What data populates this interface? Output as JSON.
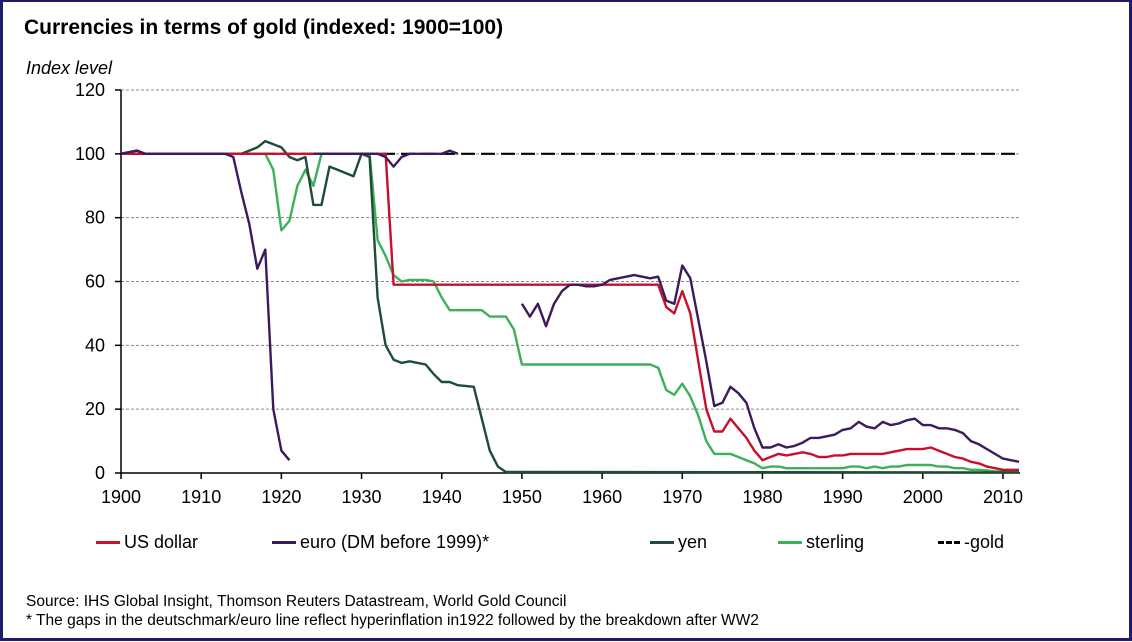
{
  "chart_data": {
    "type": "line",
    "title": "Currencies in terms of gold (indexed: 1900=100)",
    "ylabel": "Index level",
    "xlabel": "",
    "xlim": [
      1900,
      2012
    ],
    "ylim": [
      0,
      120
    ],
    "xticks": [
      1900,
      1910,
      1920,
      1930,
      1940,
      1950,
      1960,
      1970,
      1980,
      1990,
      2000,
      2010
    ],
    "yticks": [
      0,
      20,
      40,
      60,
      80,
      100,
      120
    ],
    "grid": "horizontal dashed",
    "legend_position": "bottom",
    "series": [
      {
        "name": "US dollar",
        "color": "#c8102e",
        "dashed": false,
        "points": [
          [
            1900,
            100
          ],
          [
            1933,
            100
          ],
          [
            1934,
            59
          ],
          [
            1967,
            59
          ],
          [
            1968,
            52
          ],
          [
            1969,
            50
          ],
          [
            1970,
            57
          ],
          [
            1971,
            50
          ],
          [
            1972,
            35
          ],
          [
            1973,
            20
          ],
          [
            1974,
            13
          ],
          [
            1975,
            13
          ],
          [
            1976,
            17
          ],
          [
            1977,
            14
          ],
          [
            1978,
            11
          ],
          [
            1979,
            7
          ],
          [
            1980,
            4
          ],
          [
            1981,
            5
          ],
          [
            1982,
            6
          ],
          [
            1983,
            5.5
          ],
          [
            1984,
            6
          ],
          [
            1985,
            6.5
          ],
          [
            1986,
            6
          ],
          [
            1987,
            5
          ],
          [
            1988,
            5
          ],
          [
            1989,
            5.5
          ],
          [
            1990,
            5.5
          ],
          [
            1991,
            6
          ],
          [
            1995,
            6
          ],
          [
            1996,
            6.5
          ],
          [
            1997,
            7
          ],
          [
            1998,
            7.5
          ],
          [
            2000,
            7.5
          ],
          [
            2001,
            8
          ],
          [
            2002,
            7
          ],
          [
            2003,
            6
          ],
          [
            2004,
            5
          ],
          [
            2005,
            4.5
          ],
          [
            2006,
            3.5
          ],
          [
            2007,
            3
          ],
          [
            2008,
            2
          ],
          [
            2009,
            1.5
          ],
          [
            2010,
            1
          ],
          [
            2012,
            1
          ]
        ]
      },
      {
        "name": "euro (DM before 1999)*",
        "color": "#3b1a5e",
        "dashed": false,
        "points": [
          [
            1900,
            100
          ],
          [
            1902,
            101
          ],
          [
            1903,
            100
          ],
          [
            1913,
            100
          ],
          [
            1914,
            99
          ],
          [
            1915,
            88
          ],
          [
            1916,
            78
          ],
          [
            1917,
            64
          ],
          [
            1918,
            70
          ],
          [
            1919,
            20
          ],
          [
            1920,
            7
          ],
          [
            1921,
            4
          ],
          null,
          [
            1924,
            100
          ],
          [
            1932,
            100
          ],
          [
            1933,
            99
          ],
          [
            1934,
            96
          ],
          [
            1935,
            99
          ],
          [
            1936,
            100
          ],
          [
            1940,
            100
          ],
          [
            1941,
            101
          ],
          [
            1942,
            100
          ],
          null,
          [
            1950,
            53
          ],
          [
            1951,
            49
          ],
          [
            1952,
            53
          ],
          [
            1953,
            46
          ],
          [
            1954,
            53
          ],
          [
            1955,
            57
          ],
          [
            1956,
            59
          ],
          [
            1957,
            59
          ],
          [
            1958,
            58.5
          ],
          [
            1959,
            58.5
          ],
          [
            1960,
            59
          ],
          [
            1961,
            60.5
          ],
          [
            1962,
            61
          ],
          [
            1963,
            61.5
          ],
          [
            1964,
            62
          ],
          [
            1965,
            61.5
          ],
          [
            1966,
            61
          ],
          [
            1967,
            61.5
          ],
          [
            1968,
            54
          ],
          [
            1969,
            53
          ],
          [
            1970,
            65
          ],
          [
            1971,
            61
          ],
          [
            1972,
            48
          ],
          [
            1973,
            35
          ],
          [
            1974,
            21
          ],
          [
            1975,
            22
          ],
          [
            1976,
            27
          ],
          [
            1977,
            25
          ],
          [
            1978,
            22
          ],
          [
            1979,
            14
          ],
          [
            1980,
            8
          ],
          [
            1981,
            8
          ],
          [
            1982,
            9
          ],
          [
            1983,
            8
          ],
          [
            1984,
            8.5
          ],
          [
            1985,
            9.5
          ],
          [
            1986,
            11
          ],
          [
            1987,
            11
          ],
          [
            1988,
            11.5
          ],
          [
            1989,
            12
          ],
          [
            1990,
            13.5
          ],
          [
            1991,
            14
          ],
          [
            1992,
            16
          ],
          [
            1993,
            14.5
          ],
          [
            1994,
            14
          ],
          [
            1995,
            16
          ],
          [
            1996,
            15
          ],
          [
            1997,
            15.5
          ],
          [
            1998,
            16.5
          ],
          [
            1999,
            17
          ],
          [
            2000,
            15
          ],
          [
            2001,
            15
          ],
          [
            2002,
            14
          ],
          [
            2003,
            14
          ],
          [
            2004,
            13.5
          ],
          [
            2005,
            12.5
          ],
          [
            2006,
            10
          ],
          [
            2007,
            9
          ],
          [
            2008,
            7.5
          ],
          [
            2009,
            6
          ],
          [
            2010,
            4.5
          ],
          [
            2011,
            4
          ],
          [
            2012,
            3.5
          ]
        ]
      },
      {
        "name": "yen",
        "color": "#1e4d35",
        "dashed": false,
        "points": [
          [
            1900,
            100
          ],
          [
            1902,
            101
          ],
          [
            1903,
            100
          ],
          [
            1915,
            100
          ],
          [
            1916,
            101
          ],
          [
            1917,
            102
          ],
          [
            1918,
            104
          ],
          [
            1919,
            103
          ],
          [
            1920,
            102
          ],
          [
            1921,
            99
          ],
          [
            1922,
            98
          ],
          [
            1923,
            99
          ],
          [
            1924,
            84
          ],
          [
            1925,
            84
          ],
          [
            1926,
            96
          ],
          [
            1927,
            95
          ],
          [
            1928,
            94
          ],
          [
            1929,
            93
          ],
          [
            1930,
            100
          ],
          [
            1931,
            99
          ],
          [
            1932,
            55
          ],
          [
            1933,
            40
          ],
          [
            1934,
            35.5
          ],
          [
            1935,
            34.5
          ],
          [
            1936,
            35
          ],
          [
            1937,
            34.5
          ],
          [
            1938,
            34
          ],
          [
            1939,
            31
          ],
          [
            1940,
            28.5
          ],
          [
            1941,
            28.5
          ],
          [
            1942,
            27.5
          ],
          [
            1944,
            27
          ],
          [
            1945,
            17
          ],
          [
            1946,
            7
          ],
          [
            1947,
            2
          ],
          [
            1948,
            0.3
          ],
          [
            2012,
            0.2
          ]
        ]
      },
      {
        "name": "sterling",
        "color": "#3cb05a",
        "dashed": false,
        "points": [
          [
            1900,
            100
          ],
          [
            1918,
            100
          ],
          [
            1919,
            95
          ],
          [
            1920,
            76
          ],
          [
            1921,
            79
          ],
          [
            1922,
            90
          ],
          [
            1923,
            95
          ],
          [
            1924,
            90
          ],
          [
            1925,
            100
          ],
          [
            1931,
            100
          ],
          [
            1932,
            73
          ],
          [
            1933,
            68
          ],
          [
            1934,
            62
          ],
          [
            1935,
            60
          ],
          [
            1936,
            60.5
          ],
          [
            1938,
            60.5
          ],
          [
            1939,
            60
          ],
          [
            1940,
            55
          ],
          [
            1941,
            51
          ],
          [
            1945,
            51
          ],
          [
            1946,
            49
          ],
          [
            1948,
            49
          ],
          [
            1949,
            45
          ],
          [
            1950,
            34
          ],
          [
            1966,
            34
          ],
          [
            1967,
            33
          ],
          [
            1968,
            26
          ],
          [
            1969,
            24.5
          ],
          [
            1970,
            28
          ],
          [
            1971,
            24
          ],
          [
            1972,
            18
          ],
          [
            1973,
            10
          ],
          [
            1974,
            6
          ],
          [
            1976,
            6
          ],
          [
            1977,
            5
          ],
          [
            1978,
            4
          ],
          [
            1979,
            3
          ],
          [
            1980,
            1.5
          ],
          [
            1981,
            2
          ],
          [
            1982,
            2
          ],
          [
            1983,
            1.5
          ],
          [
            1990,
            1.5
          ],
          [
            1991,
            2
          ],
          [
            1992,
            2
          ],
          [
            1993,
            1.5
          ],
          [
            1994,
            2
          ],
          [
            1995,
            1.5
          ],
          [
            1996,
            2
          ],
          [
            1997,
            2
          ],
          [
            1998,
            2.5
          ],
          [
            2001,
            2.5
          ],
          [
            2002,
            2
          ],
          [
            2003,
            2
          ],
          [
            2004,
            1.5
          ],
          [
            2005,
            1.5
          ],
          [
            2006,
            1
          ],
          [
            2007,
            1
          ],
          [
            2008,
            0.8
          ],
          [
            2009,
            0.5
          ],
          [
            2010,
            0.5
          ],
          [
            2011,
            0.3
          ],
          [
            2012,
            0.3
          ]
        ]
      },
      {
        "name": "gold",
        "legend_label": "-gold",
        "color": "#000000",
        "dashed": true,
        "points": [
          [
            1900,
            100
          ],
          [
            2012,
            100
          ]
        ]
      }
    ]
  },
  "source": "Source: IHS Global Insight, Thomson Reuters Datastream, World Gold Council",
  "footnote": "* The gaps in the deutschmark/euro line reflect  hyperinflation  in1922 followed by the breakdown  after WW2"
}
